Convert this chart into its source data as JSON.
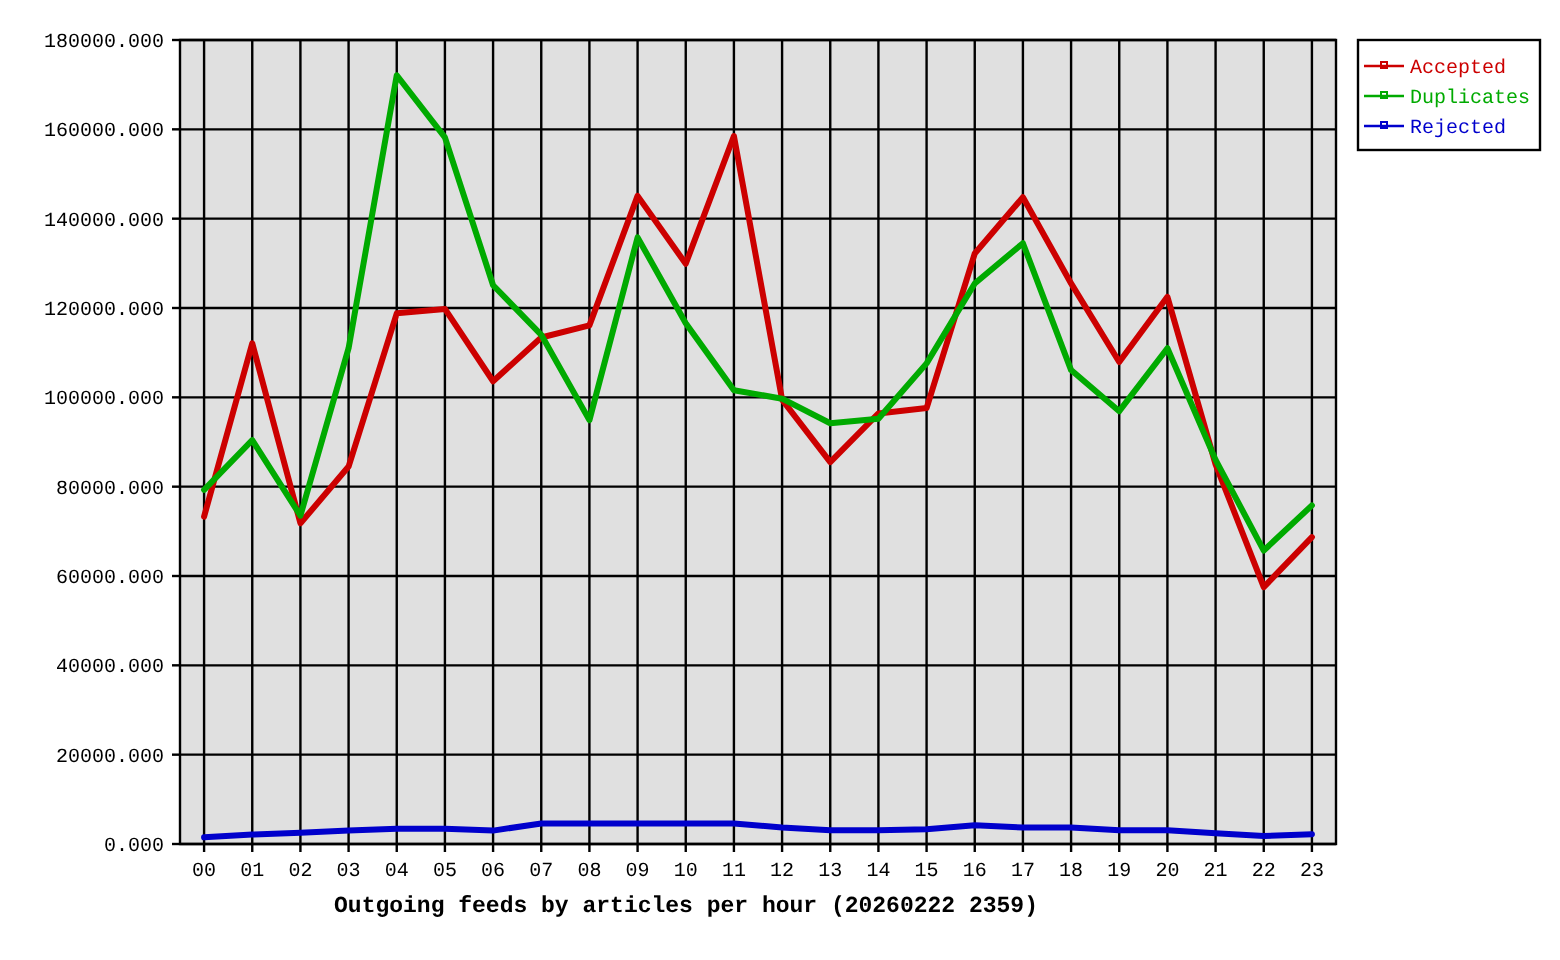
{
  "chart_data": {
    "type": "line",
    "xlabel": "Outgoing feeds by articles per hour (20260222 2359)",
    "categories": [
      "00",
      "01",
      "02",
      "03",
      "04",
      "05",
      "06",
      "07",
      "08",
      "09",
      "10",
      "11",
      "12",
      "13",
      "14",
      "15",
      "16",
      "17",
      "18",
      "19",
      "20",
      "21",
      "22",
      "23"
    ],
    "series": [
      {
        "name": "Accepted",
        "color": "#cc0000",
        "values": [
          73300,
          112100,
          71800,
          84500,
          118800,
          119800,
          103600,
          113400,
          116100,
          145100,
          129900,
          158500,
          99500,
          85500,
          96400,
          97600,
          132200,
          144800,
          125500,
          107900,
          122500,
          85000,
          57500,
          68700
        ]
      },
      {
        "name": "Duplicates",
        "color": "#00aa00",
        "values": [
          79300,
          90400,
          73500,
          111000,
          172100,
          158200,
          125100,
          114000,
          94900,
          135800,
          116600,
          101600,
          99700,
          94200,
          95200,
          107600,
          125500,
          134500,
          106100,
          96900,
          111000,
          86000,
          65700,
          75800
        ]
      },
      {
        "name": "Rejected",
        "color": "#0000cc",
        "values": [
          1500,
          2100,
          2500,
          3000,
          3400,
          3400,
          3000,
          4600,
          4600,
          4600,
          4600,
          4600,
          3700,
          3100,
          3100,
          3300,
          4200,
          3700,
          3700,
          3100,
          3100,
          2400,
          1800,
          2200
        ]
      }
    ],
    "ylim": [
      0,
      180000
    ],
    "yticks": [
      {
        "value": 0,
        "label": "0.000"
      },
      {
        "value": 20000,
        "label": "20000.000"
      },
      {
        "value": 40000,
        "label": "40000.000"
      },
      {
        "value": 60000,
        "label": "60000.000"
      },
      {
        "value": 80000,
        "label": "80000.000"
      },
      {
        "value": 100000,
        "label": "100000.000"
      },
      {
        "value": 120000,
        "label": "120000.000"
      },
      {
        "value": 140000,
        "label": "140000.000"
      },
      {
        "value": 160000,
        "label": "160000.000"
      },
      {
        "value": 180000,
        "label": "180000.000"
      }
    ],
    "grid": true,
    "legend": "top right"
  }
}
